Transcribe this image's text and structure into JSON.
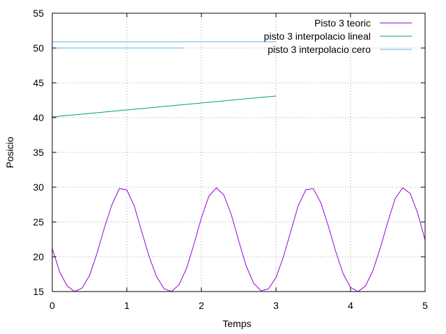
{
  "chart_data": {
    "type": "line",
    "title": "",
    "xlabel": "Temps",
    "ylabel": "Posicio",
    "xlim": [
      0,
      5
    ],
    "ylim": [
      15,
      55
    ],
    "xticks": [
      0,
      1,
      2,
      3,
      4,
      5
    ],
    "yticks": [
      15,
      20,
      25,
      30,
      35,
      40,
      45,
      50,
      55
    ],
    "grid": true,
    "legend_position": "top-right",
    "series": [
      {
        "name": "Pisto 3 teoric",
        "color": "#9400d3",
        "x": [
          0,
          0.1,
          0.2,
          0.3,
          0.4,
          0.5,
          0.6,
          0.7,
          0.8,
          0.9,
          1.0,
          1.1,
          1.2,
          1.3,
          1.4,
          1.5,
          1.6,
          1.7,
          1.8,
          1.9,
          2.0,
          2.1,
          2.2,
          2.3,
          2.4,
          2.5,
          2.6,
          2.7,
          2.8,
          2.9,
          3.0,
          3.1,
          3.2,
          3.3,
          3.4,
          3.5,
          3.6,
          3.7,
          3.8,
          3.9,
          4.0,
          4.1,
          4.2,
          4.3,
          4.4,
          4.5,
          4.6,
          4.7,
          4.8,
          4.9,
          5.0
        ],
        "y": [
          21.2,
          17.8,
          15.8,
          15.0,
          15.5,
          17.3,
          20.5,
          24.2,
          27.5,
          29.8,
          29.6,
          27.3,
          23.6,
          20.0,
          17.1,
          15.4,
          15.0,
          16.0,
          18.3,
          21.8,
          25.6,
          28.7,
          29.9,
          28.9,
          26.1,
          22.3,
          18.7,
          16.2,
          15.1,
          15.4,
          17.0,
          20.0,
          23.7,
          27.4,
          29.6,
          29.8,
          27.8,
          24.5,
          20.8,
          17.6,
          15.6,
          15.0,
          15.8,
          18.0,
          21.3,
          25.0,
          28.4,
          29.9,
          29.1,
          26.3,
          22.4
        ]
      },
      {
        "name": "pisto 3 interpolacio lineal",
        "color": "#009e73",
        "x": [
          0,
          3.0
        ],
        "y": [
          40.1,
          43.1
        ]
      },
      {
        "name": "pisto 3 interpolacio cero",
        "color": "#56b4e9",
        "segments": [
          {
            "x": [
              0,
              3.0
            ],
            "y": [
              50.9,
              50.9
            ]
          },
          {
            "x": [
              0,
              1.75
            ],
            "y": [
              50.0,
              50.0
            ]
          }
        ]
      }
    ]
  }
}
